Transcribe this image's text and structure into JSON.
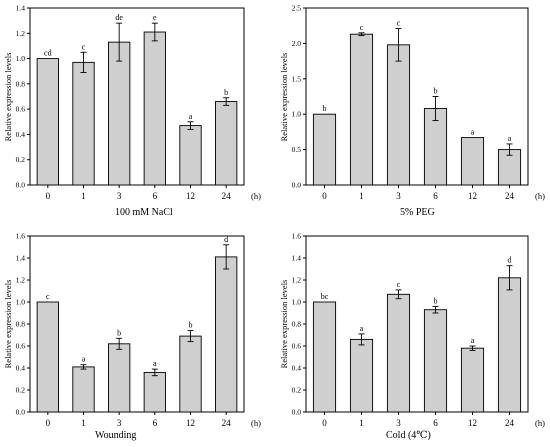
{
  "chart_data": [
    {
      "type": "bar",
      "categories": [
        "0",
        "1",
        "3",
        "6",
        "12",
        "24"
      ],
      "values": [
        1.0,
        0.97,
        1.13,
        1.21,
        0.47,
        0.66
      ],
      "errors": [
        0.0,
        0.08,
        0.15,
        0.07,
        0.03,
        0.03
      ],
      "letters": [
        "cd",
        "c",
        "de",
        "e",
        "a",
        "b"
      ],
      "xlabel": "100 mM NaCl",
      "ylabel": "Relative expression levels",
      "unit": "(h)",
      "ylim": [
        0,
        1.4
      ],
      "yticks": [
        "0.0",
        "0.2",
        "0.4",
        "0.6",
        "0.8",
        "1.0",
        "1.2",
        "1.4"
      ],
      "ytick_values": [
        0,
        0.2,
        0.4,
        0.6,
        0.8,
        1.0,
        1.2,
        1.4
      ]
    },
    {
      "type": "bar",
      "categories": [
        "0",
        "1",
        "3",
        "6",
        "12",
        "24"
      ],
      "values": [
        1.0,
        2.13,
        1.98,
        1.08,
        0.67,
        0.5
      ],
      "errors": [
        0.0,
        0.02,
        0.23,
        0.17,
        0.0,
        0.08
      ],
      "letters": [
        "b",
        "c",
        "c",
        "b",
        "a",
        "a"
      ],
      "xlabel": "5% PEG",
      "ylabel": "Relative expression levels",
      "unit": "(h)",
      "ylim": [
        0,
        2.5
      ],
      "yticks": [
        "0.0",
        "0.5",
        "1.0",
        "1.5",
        "2.0",
        "2.5"
      ],
      "ytick_values": [
        0,
        0.5,
        1.0,
        1.5,
        2.0,
        2.5
      ]
    },
    {
      "type": "bar",
      "categories": [
        "0",
        "1",
        "3",
        "6",
        "12",
        "24"
      ],
      "values": [
        1.0,
        0.41,
        0.62,
        0.36,
        0.69,
        1.41
      ],
      "errors": [
        0.0,
        0.02,
        0.05,
        0.03,
        0.05,
        0.11
      ],
      "letters": [
        "c",
        "a",
        "b",
        "a",
        "b",
        "d"
      ],
      "xlabel": "Wounding",
      "ylabel": "Relative expression levels",
      "unit": "(h)",
      "ylim": [
        0,
        1.6
      ],
      "yticks": [
        "0.0",
        "0.2",
        "0.4",
        "0.6",
        "0.8",
        "1.0",
        "1.2",
        "1.4",
        "1.6"
      ],
      "ytick_values": [
        0,
        0.2,
        0.4,
        0.6,
        0.8,
        1.0,
        1.2,
        1.4,
        1.6
      ]
    },
    {
      "type": "bar",
      "categories": [
        "0",
        "1",
        "3",
        "6",
        "12",
        "24"
      ],
      "values": [
        1.0,
        0.66,
        1.07,
        0.93,
        0.58,
        1.22
      ],
      "errors": [
        0.0,
        0.05,
        0.04,
        0.03,
        0.02,
        0.11
      ],
      "letters": [
        "bc",
        "a",
        "c",
        "b",
        "a",
        "d"
      ],
      "xlabel": "Cold (4℃)",
      "ylabel": "Relative expression levels",
      "unit": "(h)",
      "ylim": [
        0,
        1.6
      ],
      "yticks": [
        "0.0",
        "0.2",
        "0.4",
        "0.6",
        "0.8",
        "1.0",
        "1.2",
        "1.4",
        "1.6"
      ],
      "ytick_values": [
        0,
        0.2,
        0.4,
        0.6,
        0.8,
        1.0,
        1.2,
        1.4,
        1.6
      ]
    }
  ]
}
